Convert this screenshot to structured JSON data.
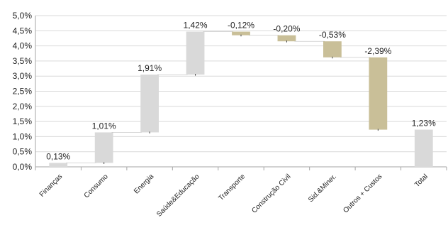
{
  "chart_data": {
    "type": "bar",
    "subtype": "waterfall",
    "title": "",
    "xlabel": "",
    "ylabel": "",
    "ylim": [
      0,
      0.05
    ],
    "yticks": [
      0,
      0.005,
      0.01,
      0.015,
      0.02,
      0.025,
      0.03,
      0.035,
      0.04,
      0.045,
      0.05
    ],
    "ytick_labels": [
      "0,0%",
      "0,5%",
      "1,0%",
      "1,5%",
      "2,0%",
      "2,5%",
      "3,0%",
      "3,5%",
      "4,0%",
      "4,5%",
      "5,0%"
    ],
    "grid": true,
    "legend": "none",
    "categories": [
      "Finanças",
      "Consumo",
      "Energia",
      "Saúde&Educação",
      "Transporte",
      "Construção Civil",
      "Sid.&Miner.",
      "Outros + Custos",
      "Total"
    ],
    "values": [
      0.0013,
      0.0101,
      0.0191,
      0.0142,
      -0.0012,
      -0.002,
      -0.0053,
      -0.0239,
      0.0123
    ],
    "bases": [
      0,
      0.0013,
      0.0114,
      0.0305,
      0.0447,
      0.0435,
      0.0415,
      0.0362,
      0
    ],
    "value_labels": [
      "0,13%",
      "1,01%",
      "1,91%",
      "1,42%",
      "-0,12%",
      "-0,20%",
      "-0,53%",
      "-2,39%",
      "1,23%"
    ],
    "colors": {
      "positive": "#d9d9d9",
      "negative": "#c9bf98",
      "grid": "#d9d9d9",
      "axis": "#a6a6a6"
    }
  }
}
